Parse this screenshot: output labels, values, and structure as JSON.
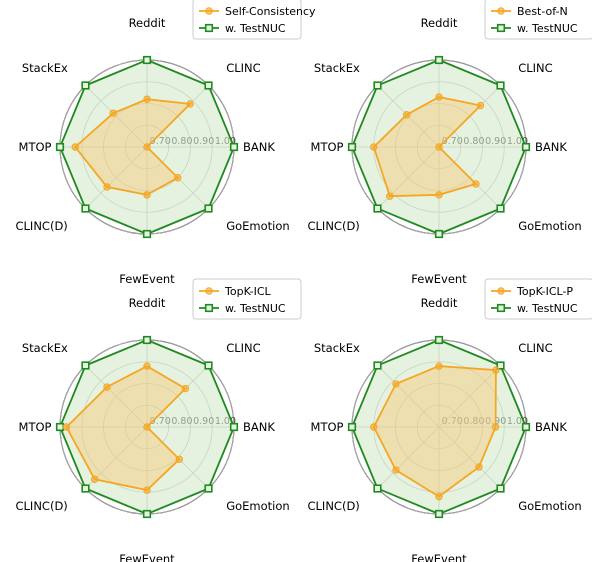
{
  "colors": {
    "base": "#f5a623",
    "base_fill": "#f7c873",
    "testnuc": "#1f8a1f",
    "testnuc_fill": "#cfe8c7",
    "grid": "#bdbdbd"
  },
  "chart_data": [
    {
      "type": "radar",
      "axes": [
        "BANK",
        "CLINC",
        "Reddit",
        "StackEx",
        "MTOP",
        "CLINC(D)",
        "FewEvent",
        "GoEmotion"
      ],
      "rlim": [
        0.6,
        1.0
      ],
      "rticks": [
        "0.70",
        "0.80",
        "0.90",
        "1.00"
      ],
      "legend_position": "upper-right",
      "series": [
        {
          "name": "Self-Consistency",
          "values": [
            0.6,
            0.88,
            0.82,
            0.82,
            0.93,
            0.86,
            0.82,
            0.8
          ]
        },
        {
          "name": "w. TestNUC",
          "values": [
            1.0,
            1.0,
            1.0,
            1.0,
            1.0,
            1.0,
            1.0,
            1.0
          ]
        }
      ]
    },
    {
      "type": "radar",
      "axes": [
        "BANK",
        "CLINC",
        "Reddit",
        "StackEx",
        "MTOP",
        "CLINC(D)",
        "FewEvent",
        "GoEmotion"
      ],
      "rlim": [
        0.6,
        1.0
      ],
      "rticks": [
        "0.70",
        "0.80",
        "0.90",
        "1.00"
      ],
      "legend_position": "upper-right",
      "series": [
        {
          "name": "Best-of-N",
          "values": [
            0.6,
            0.87,
            0.83,
            0.81,
            0.9,
            0.92,
            0.82,
            0.84
          ]
        },
        {
          "name": "w. TestNUC",
          "values": [
            1.0,
            1.0,
            1.0,
            1.0,
            1.0,
            1.0,
            1.0,
            1.0
          ]
        }
      ]
    },
    {
      "type": "radar",
      "axes": [
        "BANK",
        "CLINC",
        "Reddit",
        "StackEx",
        "MTOP",
        "CLINC(D)",
        "FewEvent",
        "GoEmotion"
      ],
      "rlim": [
        0.6,
        1.0
      ],
      "rticks": [
        "0.70",
        "0.80",
        "0.90",
        "1.00"
      ],
      "legend_position": "upper-right",
      "series": [
        {
          "name": "TopK-ICL",
          "values": [
            0.6,
            0.85,
            0.88,
            0.86,
            0.97,
            0.94,
            0.89,
            0.81
          ]
        },
        {
          "name": "w. TestNUC",
          "values": [
            1.0,
            1.0,
            1.0,
            1.0,
            1.0,
            1.0,
            1.0,
            1.0
          ]
        }
      ]
    },
    {
      "type": "radar",
      "axes": [
        "BANK",
        "CLINC",
        "Reddit",
        "StackEx",
        "MTOP",
        "CLINC(D)",
        "FewEvent",
        "GoEmotion"
      ],
      "rlim": [
        0.6,
        1.0
      ],
      "rticks": [
        "0.70",
        "0.80",
        "0.90",
        "1.00"
      ],
      "legend_position": "upper-right",
      "series": [
        {
          "name": "TopK-ICL-P",
          "values": [
            0.86,
            0.97,
            0.88,
            0.88,
            0.9,
            0.88,
            0.92,
            0.86
          ]
        },
        {
          "name": "w. TestNUC",
          "values": [
            1.0,
            1.0,
            1.0,
            1.0,
            1.0,
            1.0,
            1.0,
            1.0
          ]
        }
      ]
    }
  ]
}
